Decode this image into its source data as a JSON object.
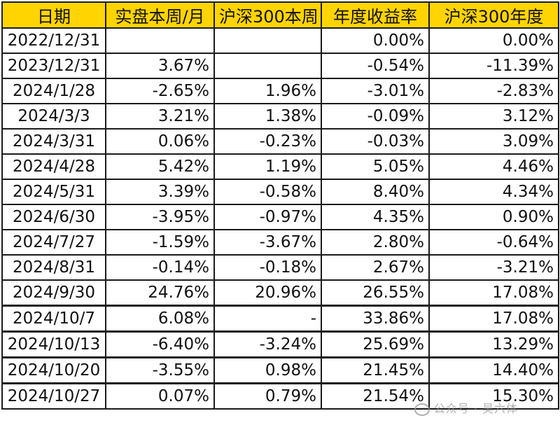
{
  "headers": [
    "日期",
    "实盘本周/月",
    "沪深300本周",
    "年度收益率",
    "沪深300年度"
  ],
  "rows": [
    [
      "2022/12/31",
      "",
      "",
      "0.00%",
      "0.00%"
    ],
    [
      "2023/12/31",
      "3.67%",
      "",
      "-0.54%",
      "-11.39%"
    ],
    [
      "2024/1/28",
      "-2.65%",
      "1.96%",
      "-3.01%",
      "-2.83%"
    ],
    [
      "2024/3/3",
      "3.21%",
      "1.38%",
      "-0.09%",
      "3.12%"
    ],
    [
      "2024/3/31",
      "0.06%",
      "-0.23%",
      "-0.03%",
      "3.09%"
    ],
    [
      "2024/4/28",
      "5.42%",
      "1.19%",
      "5.05%",
      "4.46%"
    ],
    [
      "2024/5/31",
      "3.39%",
      "-0.58%",
      "8.40%",
      "4.34%"
    ],
    [
      "2024/6/30",
      "-3.95%",
      "-0.97%",
      "4.35%",
      "0.90%"
    ],
    [
      "2024/7/27",
      "-1.59%",
      "-3.67%",
      "2.80%",
      "-0.64%"
    ],
    [
      "2024/8/31",
      "-0.14%",
      "-0.18%",
      "2.67%",
      "-3.21%"
    ],
    [
      "2024/9/30",
      "24.76%",
      "20.96%",
      "26.55%",
      "17.08%"
    ],
    [
      "2024/10/7",
      "6.08%",
      "-",
      "33.86%",
      "17.08%"
    ],
    [
      "2024/10/13",
      "-6.40%",
      "-3.24%",
      "25.69%",
      "13.29%"
    ],
    [
      "2024/10/20",
      "-3.55%",
      "0.98%",
      "21.45%",
      "14.40%"
    ],
    [
      "2024/10/27",
      "0.07%",
      "0.79%",
      "21.54%",
      "15.30%"
    ]
  ],
  "watermark": "公众号 · 昊六体",
  "colors": {
    "header_bg": "#ffd400",
    "border": "#1a1a1a",
    "text": "#111111"
  }
}
